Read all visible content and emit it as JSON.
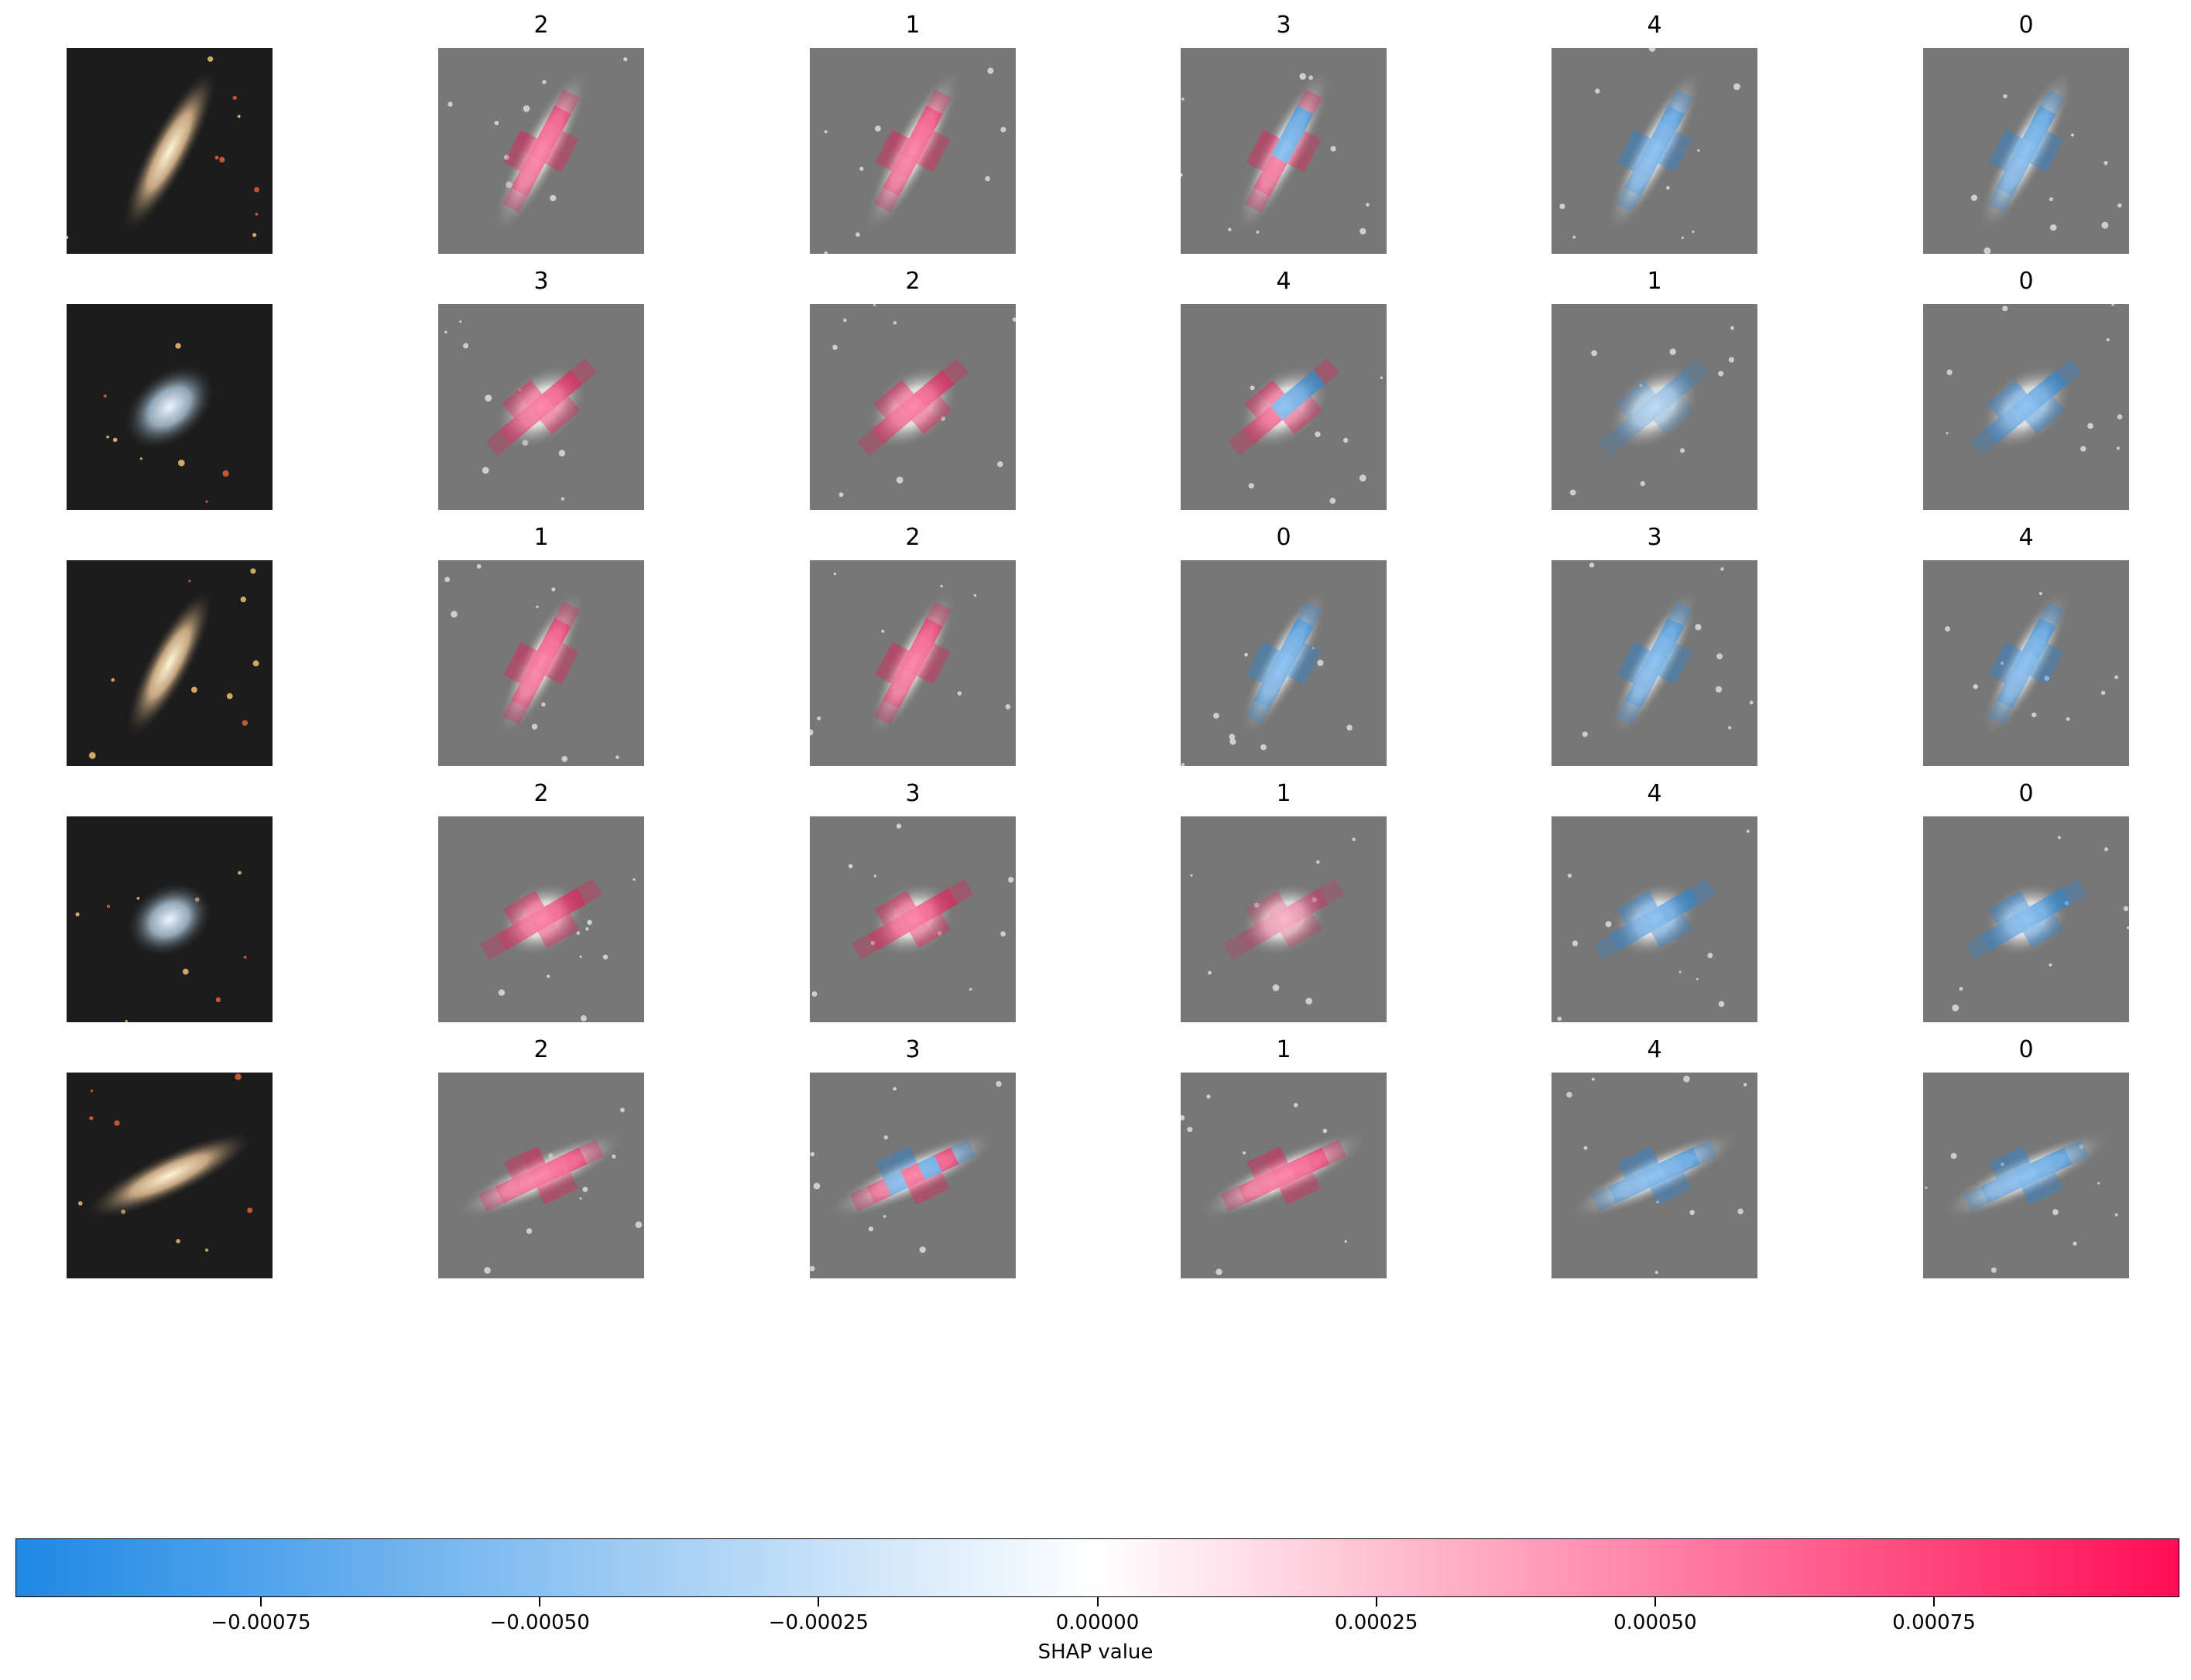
{
  "chart_data": {
    "type": "heatmap",
    "description_kind": "SHAP image explanation grid",
    "rows": [
      {
        "input": "galaxy-edge-on-1",
        "class_order": [
          "2",
          "1",
          "3",
          "4",
          "0"
        ],
        "shape": {
          "angle": -62,
          "elong": 4.2,
          "tone": "warm"
        }
      },
      {
        "input": "galaxy-compact-2",
        "class_order": [
          "3",
          "2",
          "4",
          "1",
          "0"
        ],
        "shape": {
          "angle": -40,
          "elong": 1.5,
          "tone": "cool"
        }
      },
      {
        "input": "galaxy-elliptical-3",
        "class_order": [
          "1",
          "2",
          "0",
          "3",
          "4"
        ],
        "shape": {
          "angle": -62,
          "elong": 2.4,
          "tone": "warm"
        }
      },
      {
        "input": "galaxy-spiral-4",
        "class_order": [
          "2",
          "3",
          "1",
          "4",
          "0"
        ],
        "shape": {
          "angle": -30,
          "elong": 1.3,
          "tone": "cool"
        }
      },
      {
        "input": "galaxy-edge-on-5",
        "class_order": [
          "2",
          "3",
          "1",
          "4",
          "0"
        ],
        "shape": {
          "angle": -25,
          "elong": 4.5,
          "tone": "warm"
        }
      }
    ],
    "shap_sign_by_panel": [
      [
        "pos",
        "pos",
        "mix-neg-center",
        "neg",
        "neg"
      ],
      [
        "pos",
        "pos",
        "mix-neg-center",
        "neg-light",
        "neg"
      ],
      [
        "pos",
        "pos",
        "neg",
        "neg",
        "neg"
      ],
      [
        "pos",
        "pos",
        "pos-light",
        "neg",
        "neg"
      ],
      [
        "pos",
        "pos-neg",
        "pos",
        "neg",
        "neg"
      ]
    ],
    "colorbar": {
      "label": "SHAP value",
      "range": [
        -0.00097,
        0.00097
      ],
      "ticks": [
        -0.00075,
        -0.0005,
        -0.00025,
        0.0,
        0.00025,
        0.0005,
        0.00075
      ],
      "tick_labels": [
        "−0.00075",
        "−0.00050",
        "−0.00025",
        "0.00000",
        "0.00025",
        "0.00050",
        "0.00075"
      ],
      "colors": {
        "negative": "#1E88E5",
        "zero": "#FFFFFF",
        "positive": "#FF0D57"
      }
    }
  }
}
